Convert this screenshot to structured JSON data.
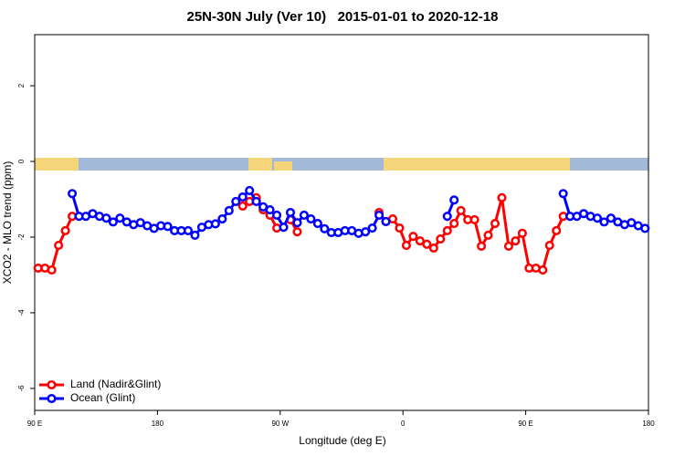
{
  "chart_data": {
    "type": "line",
    "title": "25N-30N July (Ver 10)   2015-01-01 to 2020-12-18",
    "x_label": "Longitude (deg E)",
    "y_label": "XCO2 - MLO trend (ppm)",
    "x": [
      92.5,
      97.5,
      102.5,
      107.5,
      112.5,
      117.5,
      122.5,
      127.5,
      132.5,
      137.5,
      142.5,
      147.5,
      152.5,
      157.5,
      162.5,
      167.5,
      172.5,
      177.5,
      182.5,
      187.5,
      192.5,
      197.5,
      202.5,
      207.5,
      212.5,
      217.5,
      222.5,
      227.5,
      232.5,
      237.5,
      242.5,
      247.5,
      252.5,
      257.5,
      262.5,
      267.5,
      272.5,
      277.5,
      282.5,
      287.5,
      292.5,
      297.5,
      302.5,
      307.5,
      312.5,
      317.5,
      322.5,
      327.5,
      332.5,
      337.5,
      342.5,
      347.5,
      352.5,
      357.5,
      362.5,
      367.5,
      372.5,
      377.5,
      382.5,
      387.5,
      392.5,
      397.5,
      402.5,
      407.5,
      412.5,
      417.5,
      422.5,
      427.5,
      432.5,
      437.5,
      442.5,
      447.5,
      452.5,
      457.5,
      462.5,
      467.5,
      472.5,
      477.5,
      482.5,
      487.5,
      492.5,
      497.5,
      502.5,
      507.5,
      512.5,
      517.5,
      522.5,
      527.5,
      532.5,
      537.5
    ],
    "series": [
      {
        "name": "Land (Nadir&Glint)",
        "color": "#ff0000",
        "values": [
          -2.82,
          -2.82,
          -2.87,
          -2.22,
          -1.83,
          -1.45,
          null,
          null,
          null,
          null,
          null,
          null,
          null,
          null,
          null,
          null,
          null,
          null,
          null,
          null,
          null,
          null,
          null,
          null,
          null,
          null,
          null,
          null,
          null,
          null,
          -1.18,
          -1.06,
          -0.96,
          -1.28,
          -1.42,
          -1.76,
          null,
          -1.54,
          -1.86,
          null,
          null,
          null,
          null,
          null,
          null,
          null,
          null,
          null,
          null,
          null,
          -1.35,
          -1.59,
          -1.52,
          -1.76,
          -2.22,
          -1.98,
          -2.1,
          -2.19,
          -2.29,
          -2.05,
          -1.83,
          -1.64,
          -1.3,
          -1.54,
          -1.54,
          -2.24,
          -1.95,
          -1.64,
          -0.96,
          -2.24,
          -2.1,
          -1.9,
          -2.82,
          -2.82,
          -2.87,
          -2.22,
          -1.83,
          -1.45,
          null,
          null,
          null,
          null,
          null,
          null,
          null,
          null,
          null,
          null,
          null,
          null
        ]
      },
      {
        "name": "Ocean (Glint)",
        "color": "#0000ff",
        "values": [
          null,
          null,
          null,
          null,
          null,
          -0.85,
          -1.45,
          -1.45,
          -1.38,
          -1.45,
          -1.5,
          -1.6,
          -1.5,
          -1.6,
          -1.67,
          -1.62,
          -1.7,
          -1.77,
          -1.7,
          -1.72,
          -1.83,
          -1.83,
          -1.83,
          -1.95,
          -1.74,
          -1.67,
          -1.65,
          -1.52,
          -1.3,
          -1.06,
          -0.94,
          -0.77,
          -1.06,
          -1.2,
          -1.28,
          -1.42,
          -1.74,
          -1.35,
          -1.62,
          -1.42,
          -1.52,
          -1.64,
          -1.78,
          -1.88,
          -1.88,
          -1.83,
          -1.83,
          -1.9,
          -1.86,
          -1.76,
          -1.42,
          -1.59,
          null,
          null,
          null,
          null,
          null,
          null,
          null,
          null,
          -1.45,
          -1.02,
          null,
          null,
          null,
          null,
          null,
          null,
          null,
          null,
          null,
          null,
          null,
          null,
          null,
          null,
          null,
          -0.85,
          -1.45,
          -1.45,
          -1.38,
          -1.45,
          -1.5,
          -1.6,
          -1.5,
          -1.6,
          -1.67,
          -1.62,
          -1.7,
          -1.77
        ]
      }
    ],
    "xlim": [
      90,
      540
    ],
    "xticks": [
      {
        "value": 90,
        "label": "90 E"
      },
      180,
      {
        "value": 270,
        "label": "90 W"
      },
      {
        "value": 360,
        "label": "0"
      },
      {
        "value": 450,
        "label": "90 E"
      },
      {
        "value": 540,
        "label": "180"
      }
    ],
    "ylim": [
      -6.58,
      3.35
    ],
    "yticks": [
      -6,
      -4,
      -2,
      0,
      2
    ],
    "legend": "bottom-left"
  }
}
